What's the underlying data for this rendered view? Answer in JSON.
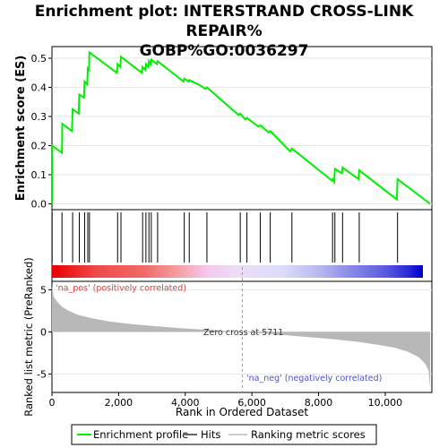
{
  "title": {
    "line1": "Enrichment plot: INTERSTRAND CROSS-LINK REPAIR%",
    "line2": "GOBP%GO:0036297"
  },
  "axes": {
    "es_ylabel": "Enrichment score (ES)",
    "metric_ylabel": "Ranked list metric (PreRanked)",
    "xlabel": "Rank in Ordered Dataset",
    "es_ticks": [
      "0.0",
      "0.1",
      "0.2",
      "0.3",
      "0.4",
      "0.5"
    ],
    "metric_ticks": [
      "5",
      "0",
      "-5"
    ],
    "x_ticks": [
      "0",
      "2,000",
      "4,000",
      "6,000",
      "8,000",
      "10,000"
    ]
  },
  "annotations": {
    "pos_label": "'na_pos' (positively correlated)",
    "neg_label": "'na_neg' (negatively correlated)",
    "zero_cross": "Zero cross at 5711"
  },
  "legend": {
    "enrichment": "Enrichment profile",
    "hits": "Hits",
    "ranking": "Ranking metric scores"
  },
  "colors": {
    "enrichment_line": "#00ee00",
    "hits": "#000000",
    "metric_fill": "#b8b8b8",
    "pos_label": "#d94040",
    "neg_label": "#5050cc"
  },
  "chart_data": {
    "type": "line",
    "x_range": [
      0,
      11400
    ],
    "es_ylim": [
      -0.02,
      0.54
    ],
    "metric_ylim": [
      -7.2,
      6.0
    ],
    "zero_cross": 5711,
    "es_curve": {
      "x": [
        0,
        1,
        300,
        310,
        600,
        620,
        800,
        820,
        960,
        980,
        1060,
        1075,
        1110,
        1125,
        1950,
        1970,
        2050,
        2070,
        2700,
        2720,
        2800,
        2820,
        2890,
        2910,
        2960,
        2980,
        3150,
        3170,
        3950,
        3970,
        4100,
        4120,
        4400,
        4600,
        4650,
        5600,
        5650,
        5800,
        5850,
        6200,
        6250,
        6500,
        6550,
        7150,
        7200,
        8400,
        8420,
        8470,
        8490,
        8700,
        8720,
        9200,
        9220,
        10350,
        10370,
        11350
      ],
      "y": [
        0.0,
        0.2,
        0.175,
        0.275,
        0.25,
        0.325,
        0.31,
        0.375,
        0.365,
        0.42,
        0.41,
        0.465,
        0.46,
        0.52,
        0.45,
        0.48,
        0.47,
        0.505,
        0.45,
        0.47,
        0.46,
        0.48,
        0.47,
        0.49,
        0.48,
        0.495,
        0.48,
        0.49,
        0.42,
        0.43,
        0.42,
        0.425,
        0.41,
        0.395,
        0.4,
        0.305,
        0.31,
        0.29,
        0.295,
        0.265,
        0.27,
        0.245,
        0.25,
        0.18,
        0.19,
        0.08,
        0.085,
        0.075,
        0.12,
        0.105,
        0.125,
        0.085,
        0.115,
        0.015,
        0.085,
        0.0
      ]
    },
    "hits": [
      5,
      300,
      620,
      820,
      980,
      1075,
      1125,
      1970,
      2070,
      2720,
      2820,
      2910,
      2980,
      3170,
      3970,
      4120,
      4650,
      5650,
      5850,
      6250,
      6550,
      7200,
      8420,
      8490,
      8720,
      9220,
      10370
    ],
    "metric_scores": {
      "rank": [
        0,
        50,
        150,
        300,
        500,
        800,
        1200,
        1700,
        2300,
        3000,
        3800,
        4600,
        5200,
        5711,
        6200,
        7000,
        7800,
        8500,
        9200,
        9800,
        10300,
        10700,
        11000,
        11200,
        11300,
        11350
      ],
      "value": [
        5.5,
        4.2,
        3.6,
        3.0,
        2.5,
        2.0,
        1.6,
        1.25,
        0.95,
        0.7,
        0.45,
        0.25,
        0.1,
        0.0,
        -0.15,
        -0.4,
        -0.65,
        -0.9,
        -1.2,
        -1.55,
        -1.9,
        -2.4,
        -3.0,
        -3.8,
        -4.6,
        -6.8
      ]
    }
  }
}
